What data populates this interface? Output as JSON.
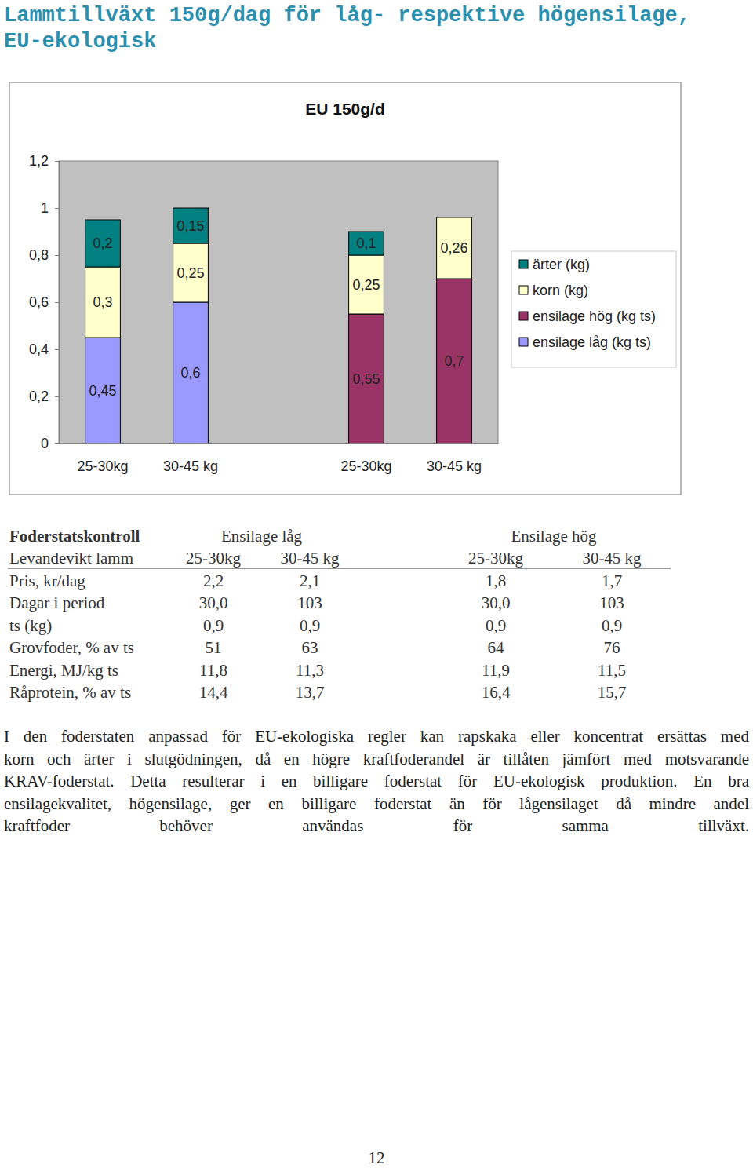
{
  "heading": [
    "Lammtillväxt 150g/dag för låg- respektive högensilage,",
    "EU-ekologisk"
  ],
  "chart_data": {
    "type": "bar",
    "stacked": true,
    "title": "EU 150g/d",
    "categories": [
      "25-30kg",
      "30-45 kg",
      null,
      "25-30kg",
      "30-45 kg"
    ],
    "series": [
      {
        "name": "ensilage låg (kg ts)",
        "color": "#9999ff",
        "values": [
          0.45,
          0.6,
          null,
          null,
          null
        ],
        "value_labels": [
          "0,45",
          "0,6",
          null,
          null,
          null
        ]
      },
      {
        "name": "ensilage hög (kg ts)",
        "color": "#993366",
        "values": [
          null,
          null,
          null,
          0.55,
          0.7
        ],
        "value_labels": [
          null,
          null,
          null,
          "0,55",
          "0,7"
        ]
      },
      {
        "name": "korn (kg)",
        "color": "#ffffcc",
        "values": [
          0.3,
          0.25,
          null,
          0.25,
          0.26
        ],
        "value_labels": [
          "0,3",
          "0,25",
          null,
          "0,25",
          "0,26"
        ]
      },
      {
        "name": "ärter (kg)",
        "color": "#008080",
        "values": [
          0.2,
          0.15,
          null,
          0.1,
          null
        ],
        "value_labels": [
          "0,2",
          "0,15",
          null,
          "0,1",
          null
        ]
      }
    ],
    "ylim": [
      0,
      1.2
    ],
    "yticks": [
      0,
      {
        "value": 0.2,
        "label": "0,2"
      },
      {
        "value": 0.4,
        "label": "0,4"
      },
      {
        "value": 0.6,
        "label": "0,6"
      },
      {
        "value": 0.8,
        "label": "0,8"
      },
      1,
      {
        "value": 1.2,
        "label": "1,2"
      }
    ],
    "grid": false,
    "data_labels": true,
    "legend": "right"
  },
  "table": {
    "title": "Foderstatskontroll",
    "groups": [
      "Ensilage låg",
      "Ensilage hög"
    ],
    "header": [
      "Levandevikt lamm",
      "25-30kg",
      "30-45 kg",
      "25-30kg",
      "30-45 kg"
    ],
    "rows": [
      [
        "Pris, kr/dag",
        "2,2",
        "2,1",
        "1,8",
        "1,7"
      ],
      [
        "Dagar i period",
        "30,0",
        "103",
        "30,0",
        "103"
      ],
      [
        "ts (kg)",
        "0,9",
        "0,9",
        "0,9",
        "0,9"
      ],
      [
        "Grovfoder, % av ts",
        "51",
        "63",
        "64",
        "76"
      ],
      [
        "Energi, MJ/kg ts",
        "11,8",
        "11,3",
        "11,9",
        "11,5"
      ],
      [
        "Råprotein, % av ts",
        "14,4",
        "13,7",
        "16,4",
        "15,7"
      ]
    ]
  },
  "paragraph": [
    "I den foderstaten anpassad för EU-ekologiska regler kan rapskaka eller koncentrat ersättas med",
    "korn och ärter i slutgödningen, då en högre kraftfoderandel är tillåten jämfört med motsvarande",
    "KRAV-foderstat. Detta resulterar i en billigare foderstat för EU-ekologisk produktion. En bra",
    "ensilagekvalitet, högensilage, ger en billigare foderstat än för lågensilaget då mindre andel",
    "kraftfoder behöver användas för samma tillväxt."
  ],
  "page_number": "12"
}
